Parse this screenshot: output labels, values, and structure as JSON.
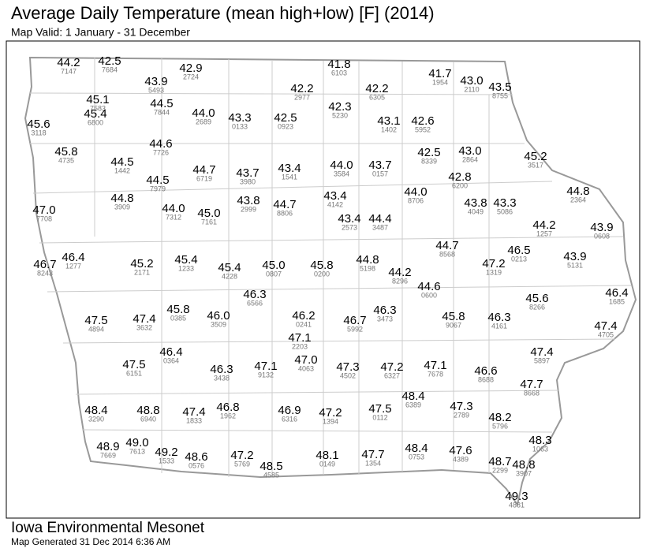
{
  "title": "Average Daily Temperature (mean high+low) [F] (2014)",
  "subtitle": "Map Valid: 1 January - 31 December",
  "footer": {
    "org": "Iowa Environmental Mesonet",
    "generated": "Map Generated 31 Dec 2014 6:36 AM"
  },
  "stations": [
    {
      "value": "44.2",
      "id": "7147"
    },
    {
      "value": "42.5",
      "id": "7684"
    },
    {
      "value": "42.9",
      "id": "2724"
    },
    {
      "value": "43.9",
      "id": "5493"
    },
    {
      "value": "41.8",
      "id": "6103"
    },
    {
      "value": "41.7",
      "id": "1954"
    },
    {
      "value": "43.0",
      "id": "2110"
    },
    {
      "value": "43.5",
      "id": "8755"
    },
    {
      "value": "42.2",
      "id": "2977"
    },
    {
      "value": "42.2",
      "id": "6305"
    },
    {
      "value": "45.1",
      "id": "7583"
    },
    {
      "value": "44.5",
      "id": "7844"
    },
    {
      "value": "45.4",
      "id": "6800"
    },
    {
      "value": "44.0",
      "id": "2689"
    },
    {
      "value": "43.3",
      "id": "0133"
    },
    {
      "value": "42.5",
      "id": "0923"
    },
    {
      "value": "42.3",
      "id": "5230"
    },
    {
      "value": "43.1",
      "id": "1402"
    },
    {
      "value": "42.6",
      "id": "5952"
    },
    {
      "value": "45.6",
      "id": "3118"
    },
    {
      "value": "44.6",
      "id": "7726"
    },
    {
      "value": "45.8",
      "id": "4735"
    },
    {
      "value": "42.5",
      "id": "8339"
    },
    {
      "value": "43.0",
      "id": "2864"
    },
    {
      "value": "45.2",
      "id": "3517"
    },
    {
      "value": "44.5",
      "id": "1442"
    },
    {
      "value": "44.7",
      "id": "6719"
    },
    {
      "value": "43.7",
      "id": "3980"
    },
    {
      "value": "43.4",
      "id": "1541"
    },
    {
      "value": "44.0",
      "id": "3584"
    },
    {
      "value": "43.7",
      "id": "0157"
    },
    {
      "value": "42.8",
      "id": "6200"
    },
    {
      "value": "44.5",
      "id": "7979"
    },
    {
      "value": "44.8",
      "id": "2364"
    },
    {
      "value": "44.0",
      "id": "8706"
    },
    {
      "value": "43.4",
      "id": "4142"
    },
    {
      "value": "44.8",
      "id": "3909"
    },
    {
      "value": "43.8",
      "id": "2999"
    },
    {
      "value": "44.7",
      "id": "8806"
    },
    {
      "value": "43.8",
      "id": "4049"
    },
    {
      "value": "43.3",
      "id": "5086"
    },
    {
      "value": "47.0",
      "id": "7708"
    },
    {
      "value": "44.0",
      "id": "7312"
    },
    {
      "value": "45.0",
      "id": "7161"
    },
    {
      "value": "43.4",
      "id": "2573"
    },
    {
      "value": "44.4",
      "id": "3487"
    },
    {
      "value": "44.2",
      "id": "1257"
    },
    {
      "value": "43.9",
      "id": "0608"
    },
    {
      "value": "44.7",
      "id": "8568"
    },
    {
      "value": "46.5",
      "id": "0213"
    },
    {
      "value": "46.4",
      "id": "1277"
    },
    {
      "value": "46.7",
      "id": "8243"
    },
    {
      "value": "45.2",
      "id": "2171"
    },
    {
      "value": "45.4",
      "id": "1233"
    },
    {
      "value": "45.4",
      "id": "4228"
    },
    {
      "value": "45.0",
      "id": "0807"
    },
    {
      "value": "45.8",
      "id": "0200"
    },
    {
      "value": "44.8",
      "id": "5198"
    },
    {
      "value": "43.9",
      "id": "5131"
    },
    {
      "value": "47.2",
      "id": "1319"
    },
    {
      "value": "44.2",
      "id": "8296"
    },
    {
      "value": "44.6",
      "id": "0600"
    },
    {
      "value": "46.3",
      "id": "6566"
    },
    {
      "value": "46.4",
      "id": "1685"
    },
    {
      "value": "45.6",
      "id": "8266"
    },
    {
      "value": "47.5",
      "id": "4894"
    },
    {
      "value": "47.4",
      "id": "3632"
    },
    {
      "value": "45.8",
      "id": "0385"
    },
    {
      "value": "46.0",
      "id": "3509"
    },
    {
      "value": "46.2",
      "id": "0241"
    },
    {
      "value": "46.3",
      "id": "3473"
    },
    {
      "value": "46.7",
      "id": "5992"
    },
    {
      "value": "45.8",
      "id": "9067"
    },
    {
      "value": "46.3",
      "id": "4161"
    },
    {
      "value": "47.4",
      "id": "4705"
    },
    {
      "value": "47.1",
      "id": "2203"
    },
    {
      "value": "46.4",
      "id": "0364"
    },
    {
      "value": "47.4",
      "id": "5897"
    },
    {
      "value": "47.0",
      "id": "4063"
    },
    {
      "value": "47.5",
      "id": "6151"
    },
    {
      "value": "46.3",
      "id": "3438"
    },
    {
      "value": "47.1",
      "id": "9132"
    },
    {
      "value": "47.3",
      "id": "4502"
    },
    {
      "value": "47.2",
      "id": "6327"
    },
    {
      "value": "47.1",
      "id": "7678"
    },
    {
      "value": "46.6",
      "id": "8688"
    },
    {
      "value": "47.7",
      "id": "8668"
    },
    {
      "value": "48.4",
      "id": "6389"
    },
    {
      "value": "48.4",
      "id": "3290"
    },
    {
      "value": "48.8",
      "id": "6940"
    },
    {
      "value": "47.4",
      "id": "1833"
    },
    {
      "value": "46.8",
      "id": "1962"
    },
    {
      "value": "46.9",
      "id": "6316"
    },
    {
      "value": "47.2",
      "id": "1394"
    },
    {
      "value": "47.5",
      "id": "0112"
    },
    {
      "value": "47.3",
      "id": "2789"
    },
    {
      "value": "48.2",
      "id": "5796"
    },
    {
      "value": "48.3",
      "id": "1063"
    },
    {
      "value": "48.9",
      "id": "7669"
    },
    {
      "value": "49.0",
      "id": "7613"
    },
    {
      "value": "49.2",
      "id": "1533"
    },
    {
      "value": "48.6",
      "id": "0576"
    },
    {
      "value": "47.2",
      "id": "5769"
    },
    {
      "value": "48.5",
      "id": "4585"
    },
    {
      "value": "48.1",
      "id": "0149"
    },
    {
      "value": "47.7",
      "id": "1354"
    },
    {
      "value": "48.4",
      "id": "0753"
    },
    {
      "value": "47.6",
      "id": "4389"
    },
    {
      "value": "48.7",
      "id": "2299"
    },
    {
      "value": "48.8",
      "id": "3907"
    },
    {
      "value": "49.3",
      "id": "4881"
    }
  ]
}
